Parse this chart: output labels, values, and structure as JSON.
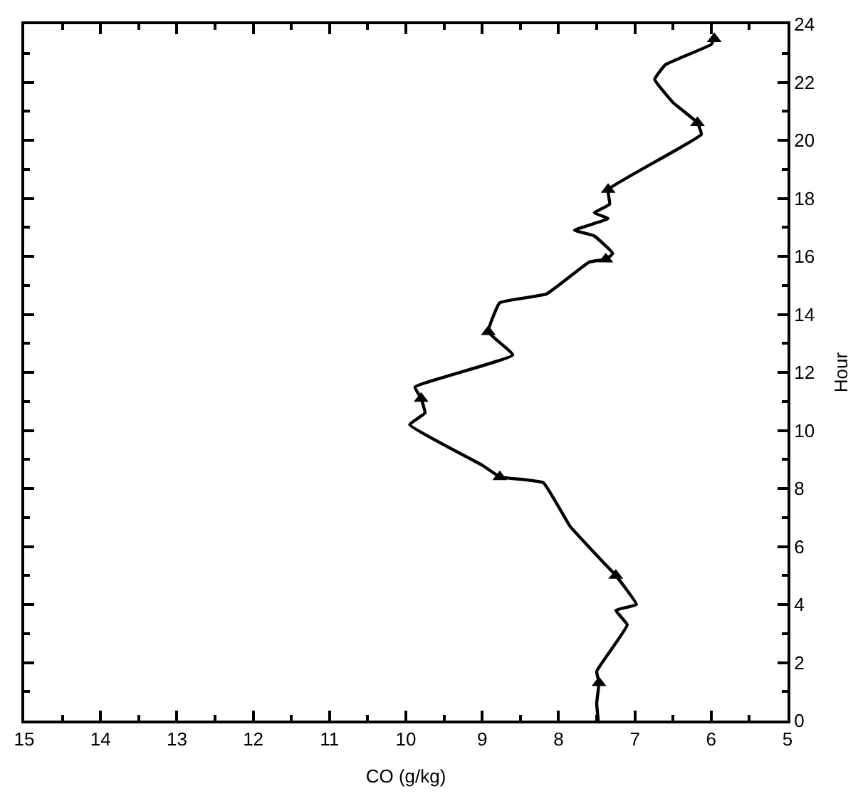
{
  "chart_data": {
    "type": "line",
    "orientation": "horizontal",
    "xlabel": "CO (g/kg)",
    "ylabel": "Hour",
    "xlim": [
      15,
      5
    ],
    "xticks": [
      15,
      14,
      13,
      12,
      11,
      10,
      9,
      8,
      7,
      6,
      5
    ],
    "ylim": [
      0,
      24
    ],
    "yticks": [
      0,
      2,
      4,
      6,
      8,
      10,
      12,
      14,
      16,
      18,
      20,
      22,
      24
    ],
    "series": [
      {
        "color": "#000000",
        "marker": "none",
        "line_style": "solid",
        "x": [
          0,
          0.6,
          1.3,
          1.7,
          3.3,
          3.8,
          4.0,
          5.0,
          5.5,
          6.7,
          8.2,
          8.4,
          8.8,
          10.2,
          10.6,
          11.1,
          11.5,
          12.6,
          13.4,
          14.4,
          14.7,
          15.8,
          15.9,
          16.1,
          16.7,
          16.9,
          17.3,
          17.5,
          17.8,
          18.3,
          20.2,
          20.6,
          21.3,
          22.1,
          22.6,
          23.3,
          23.5
        ],
        "values": [
          7.48,
          7.5,
          7.47,
          7.5,
          7.1,
          7.25,
          6.98,
          7.25,
          7.43,
          7.85,
          8.2,
          8.77,
          9.0,
          9.95,
          9.75,
          9.8,
          9.88,
          8.6,
          8.92,
          8.77,
          8.16,
          7.6,
          7.38,
          7.29,
          7.53,
          7.79,
          7.35,
          7.53,
          7.33,
          7.35,
          6.13,
          6.18,
          6.5,
          6.74,
          6.6,
          6.0,
          5.96
        ]
      },
      {
        "type": "scatter",
        "color": "#000000",
        "marker": "triangle",
        "x": [
          1.3,
          5.0,
          8.4,
          11.1,
          13.4,
          15.9,
          18.3,
          20.6,
          23.5
        ],
        "values": [
          7.47,
          7.25,
          8.77,
          9.8,
          8.92,
          7.38,
          7.35,
          6.18,
          5.96
        ]
      }
    ]
  }
}
